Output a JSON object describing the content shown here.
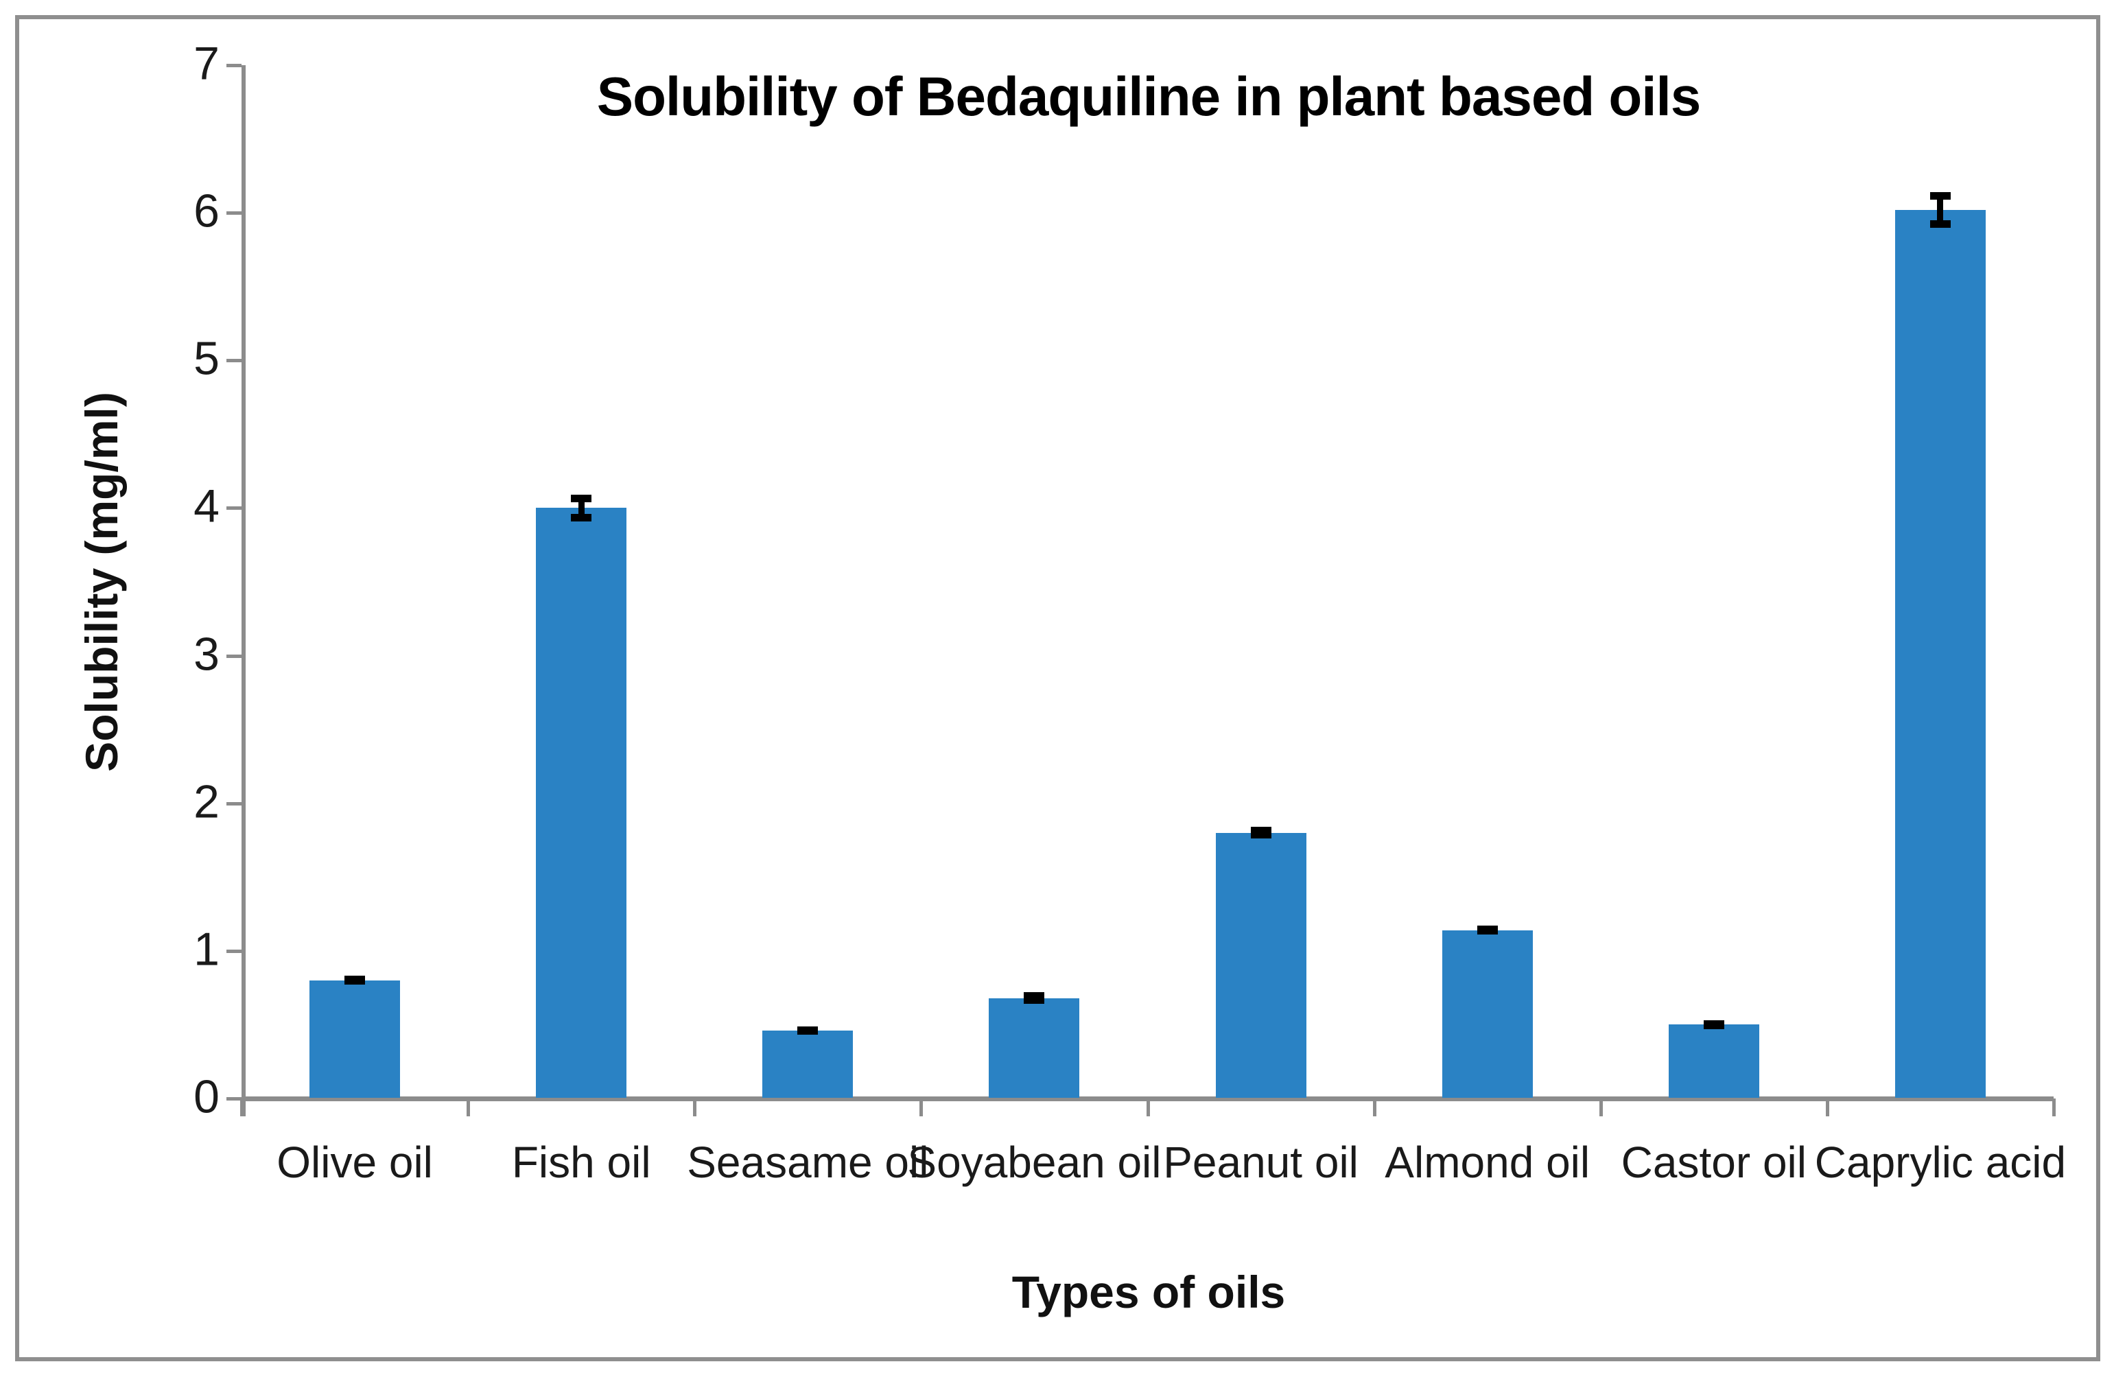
{
  "chart_data": {
    "type": "bar",
    "title": "Solubility of Bedaquiline in plant based oils",
    "xlabel": "Types of oils",
    "ylabel": "Solubility (mg/ml)",
    "categories": [
      "Olive oil",
      "Fish oil",
      "Seasame oil",
      "Soyabean oil",
      "Peanut oil",
      "Almond oil",
      "Castor oil",
      "Caprylic acid"
    ],
    "values": [
      0.8,
      4.0,
      0.46,
      0.68,
      1.8,
      1.14,
      0.5,
      6.02
    ],
    "error_bars": [
      0.03,
      0.09,
      0.03,
      0.04,
      0.04,
      0.03,
      0.03,
      0.12
    ],
    "ylim": [
      0,
      7
    ],
    "ytick_labels": [
      "0",
      "1",
      "2",
      "3",
      "4",
      "5",
      "6",
      "7"
    ],
    "grid": "off",
    "legend": "none",
    "bar_color": "#2a82c4",
    "error_color": "#000000",
    "axis_color": "#8c8c8c",
    "text_color": "#1a1a1a",
    "frame_color": "#8f8f8f"
  }
}
